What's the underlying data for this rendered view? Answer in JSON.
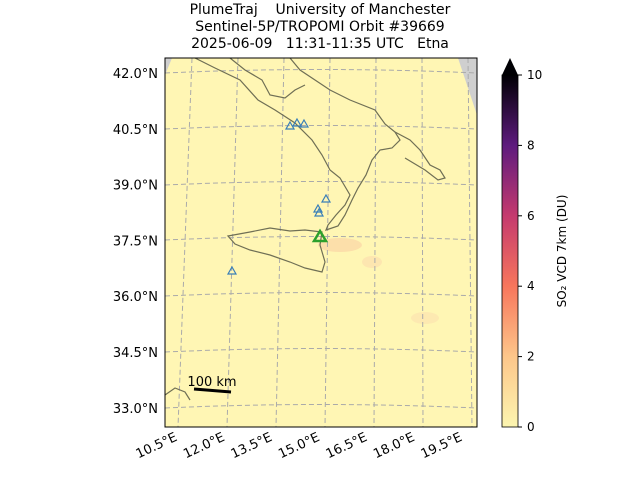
{
  "title": [
    "PlumeTraj    University of Manchester",
    "Sentinel-5P/TROPOMI Orbit #39669",
    "2025-06-09   11:31-11:35 UTC   Etna"
  ],
  "map": {
    "lat_labels": [
      "42.0°N",
      "40.5°N",
      "39.0°N",
      "37.5°N",
      "36.0°N",
      "34.5°N",
      "33.0°N"
    ],
    "lon_labels": [
      "10.5°E",
      "12.0°E",
      "13.5°E",
      "15.0°E",
      "16.5°E",
      "18.0°E",
      "19.5°E"
    ],
    "scale_bar": "100 km"
  },
  "colorbar": {
    "label": "SO₂ VCD 7km (DU)",
    "lim": [
      0,
      10
    ],
    "ticks": [
      0,
      2,
      4,
      6,
      8,
      10
    ]
  }
}
